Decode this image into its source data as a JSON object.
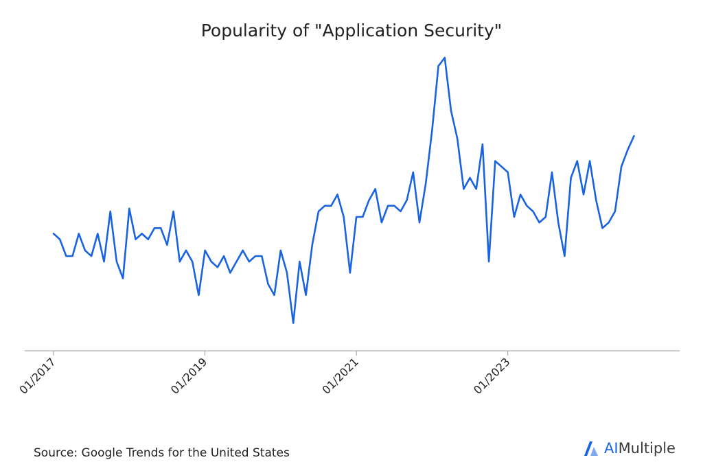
{
  "chart_data": {
    "type": "line",
    "title": "Popularity of \"Application Security\"",
    "xlabel": "",
    "ylabel": "",
    "x_start": "2017-01",
    "x_ticks": [
      "01/2017",
      "01/2019",
      "01/2021",
      "01/2023"
    ],
    "grid": false,
    "line_color": "#1a63e0",
    "ylim": [
      0,
      100
    ],
    "series": [
      {
        "values": [
          37,
          35,
          29,
          29,
          37,
          31,
          29,
          37,
          27,
          45,
          27,
          21,
          46,
          35,
          37,
          35,
          39,
          39,
          33,
          45,
          27,
          31,
          27,
          15,
          31,
          27,
          25,
          29,
          23,
          27,
          31,
          27,
          29,
          29,
          19,
          15,
          31,
          23,
          5,
          27,
          15,
          33,
          45,
          47,
          47,
          51,
          43,
          23,
          43,
          43,
          49,
          53,
          41,
          47,
          47,
          45,
          49,
          59,
          41,
          55,
          74,
          97,
          100,
          81,
          71,
          53,
          57,
          53,
          69,
          27,
          63,
          61,
          59,
          43,
          51,
          47,
          45,
          41,
          43,
          59,
          41,
          29,
          57,
          63,
          51,
          63,
          49,
          39,
          41,
          45,
          61,
          67,
          72
        ]
      }
    ]
  },
  "footer": {
    "source": "Source: Google Trends for the United States",
    "brand_ai": "AI",
    "brand_rest": "Multiple"
  }
}
